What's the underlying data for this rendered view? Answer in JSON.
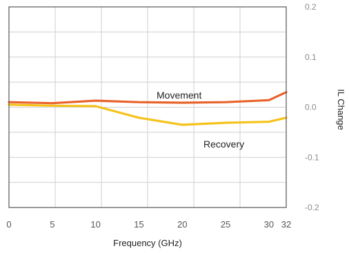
{
  "chart_data": {
    "type": "line",
    "xlabel": "Frequency (GHz)",
    "ylabel": "IL Change",
    "xlim": [
      0,
      32
    ],
    "ylim": [
      -0.2,
      0.2
    ],
    "x_ticks": [
      0,
      5,
      10,
      15,
      20,
      25,
      30,
      32
    ],
    "x_tick_labels": [
      "0",
      "5",
      "10",
      "15",
      "20",
      "25",
      "30",
      "32"
    ],
    "y_ticks": [
      0.2,
      0.1,
      0.0,
      -0.1,
      -0.2
    ],
    "y_tick_labels": [
      "0.2",
      "0.1",
      "0.0",
      "-0.1",
      "-0.2"
    ],
    "grid": true,
    "series": [
      {
        "name": "Movement",
        "color": "#e8622a",
        "x": [
          0,
          5,
          10,
          15,
          20,
          25,
          30,
          32
        ],
        "y": [
          0.01,
          0.008,
          0.013,
          0.01,
          0.009,
          0.01,
          0.014,
          0.03
        ]
      },
      {
        "name": "Recovery",
        "color": "#f5c21b",
        "x": [
          0,
          5,
          10,
          15,
          20,
          25,
          30,
          32
        ],
        "y": [
          0.005,
          0.003,
          0.002,
          -0.021,
          -0.035,
          -0.031,
          -0.029,
          -0.021
        ]
      }
    ]
  }
}
